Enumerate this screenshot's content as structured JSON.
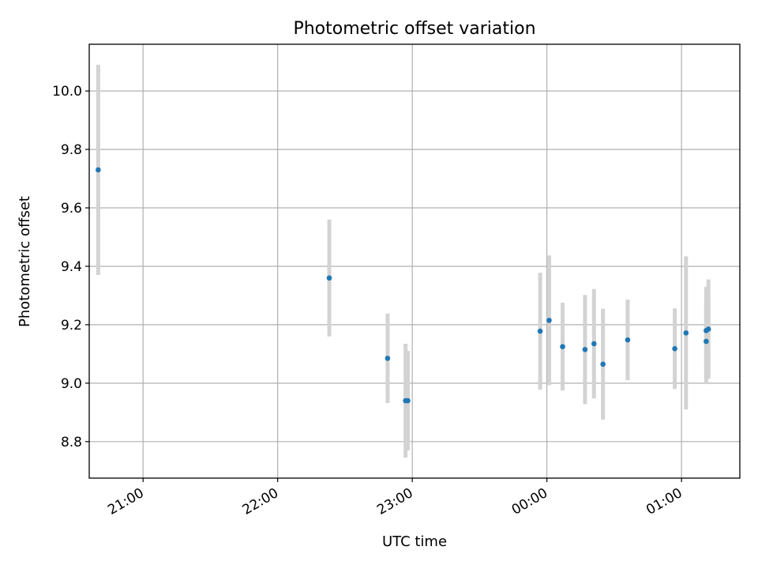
{
  "chart_data": {
    "type": "scatter",
    "title": "Photometric offset variation",
    "xlabel": "UTC time",
    "ylabel": "Photometric offset",
    "xlim": [
      "20:36",
      "01:26"
    ],
    "ylim": [
      8.675,
      10.16
    ],
    "xticks": [
      "21:00",
      "22:00",
      "23:00",
      "00:00",
      "01:00"
    ],
    "yticks": [
      8.8,
      9.0,
      9.2,
      9.4,
      9.6,
      9.8,
      10.0
    ],
    "grid": true,
    "colors": {
      "point": "#1f77b4",
      "error_bar": "#d3d3d3",
      "grid": "#b0b0b0"
    },
    "points": [
      {
        "t": "20:40",
        "y": 9.73,
        "err": 0.36
      },
      {
        "t": "22:23",
        "y": 9.36,
        "err": 0.2
      },
      {
        "t": "22:49",
        "y": 9.085,
        "err": 0.153
      },
      {
        "t": "22:57",
        "y": 8.94,
        "err": 0.195
      },
      {
        "t": "22:58",
        "y": 8.94,
        "err": 0.17
      },
      {
        "t": "23:57",
        "y": 9.178,
        "err": 0.2
      },
      {
        "t": "00:01",
        "y": 9.215,
        "err": 0.222
      },
      {
        "t": "00:07",
        "y": 9.125,
        "err": 0.15
      },
      {
        "t": "00:17",
        "y": 9.115,
        "err": 0.187
      },
      {
        "t": "00:21",
        "y": 9.135,
        "err": 0.187
      },
      {
        "t": "00:25",
        "y": 9.065,
        "err": 0.19
      },
      {
        "t": "00:36",
        "y": 9.148,
        "err": 0.138
      },
      {
        "t": "00:57",
        "y": 9.118,
        "err": 0.138
      },
      {
        "t": "01:02",
        "y": 9.172,
        "err": 0.262
      },
      {
        "t": "01:11",
        "y": 9.143,
        "err": 0.143
      },
      {
        "t": "01:11",
        "y": 9.18,
        "err": 0.15
      },
      {
        "t": "01:12",
        "y": 9.185,
        "err": 0.17
      }
    ]
  }
}
